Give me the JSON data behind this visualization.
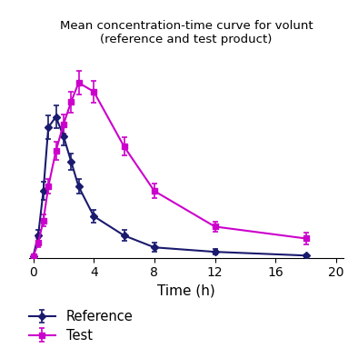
{
  "title_line1": "Mean concentration-time curve for volunt",
  "title_line2": "(reference and test product)",
  "xlabel": "Time (h)",
  "ref_x": [
    0,
    0.33,
    0.67,
    1.0,
    1.5,
    2.0,
    2.5,
    3.0,
    4.0,
    6.0,
    8.0,
    12.0,
    18.0
  ],
  "ref_y": [
    0.1,
    1.5,
    4.5,
    8.8,
    9.5,
    8.2,
    6.5,
    4.8,
    2.8,
    1.5,
    0.7,
    0.4,
    0.15
  ],
  "ref_yerr": [
    0.1,
    0.4,
    0.6,
    0.8,
    0.75,
    0.65,
    0.55,
    0.5,
    0.4,
    0.35,
    0.3,
    0.2,
    0.1
  ],
  "test_x": [
    0,
    0.33,
    0.67,
    1.0,
    1.5,
    2.0,
    2.5,
    3.0,
    4.0,
    6.0,
    8.0,
    12.0,
    18.0
  ],
  "test_y": [
    0.1,
    1.0,
    2.5,
    4.8,
    7.2,
    9.0,
    10.5,
    11.8,
    11.2,
    7.5,
    4.5,
    2.1,
    1.3
  ],
  "test_yerr": [
    0.1,
    0.3,
    0.4,
    0.5,
    0.6,
    0.65,
    0.7,
    0.8,
    0.75,
    0.6,
    0.5,
    0.35,
    0.4
  ],
  "ref_color": "#1a1a6e",
  "test_color": "#cc00cc",
  "xticks": [
    0,
    4,
    8,
    12,
    16,
    20
  ],
  "xlim": [
    -0.3,
    20.5
  ],
  "ylim": [
    0,
    14
  ],
  "ref_label": "Reference",
  "test_label": "Test"
}
